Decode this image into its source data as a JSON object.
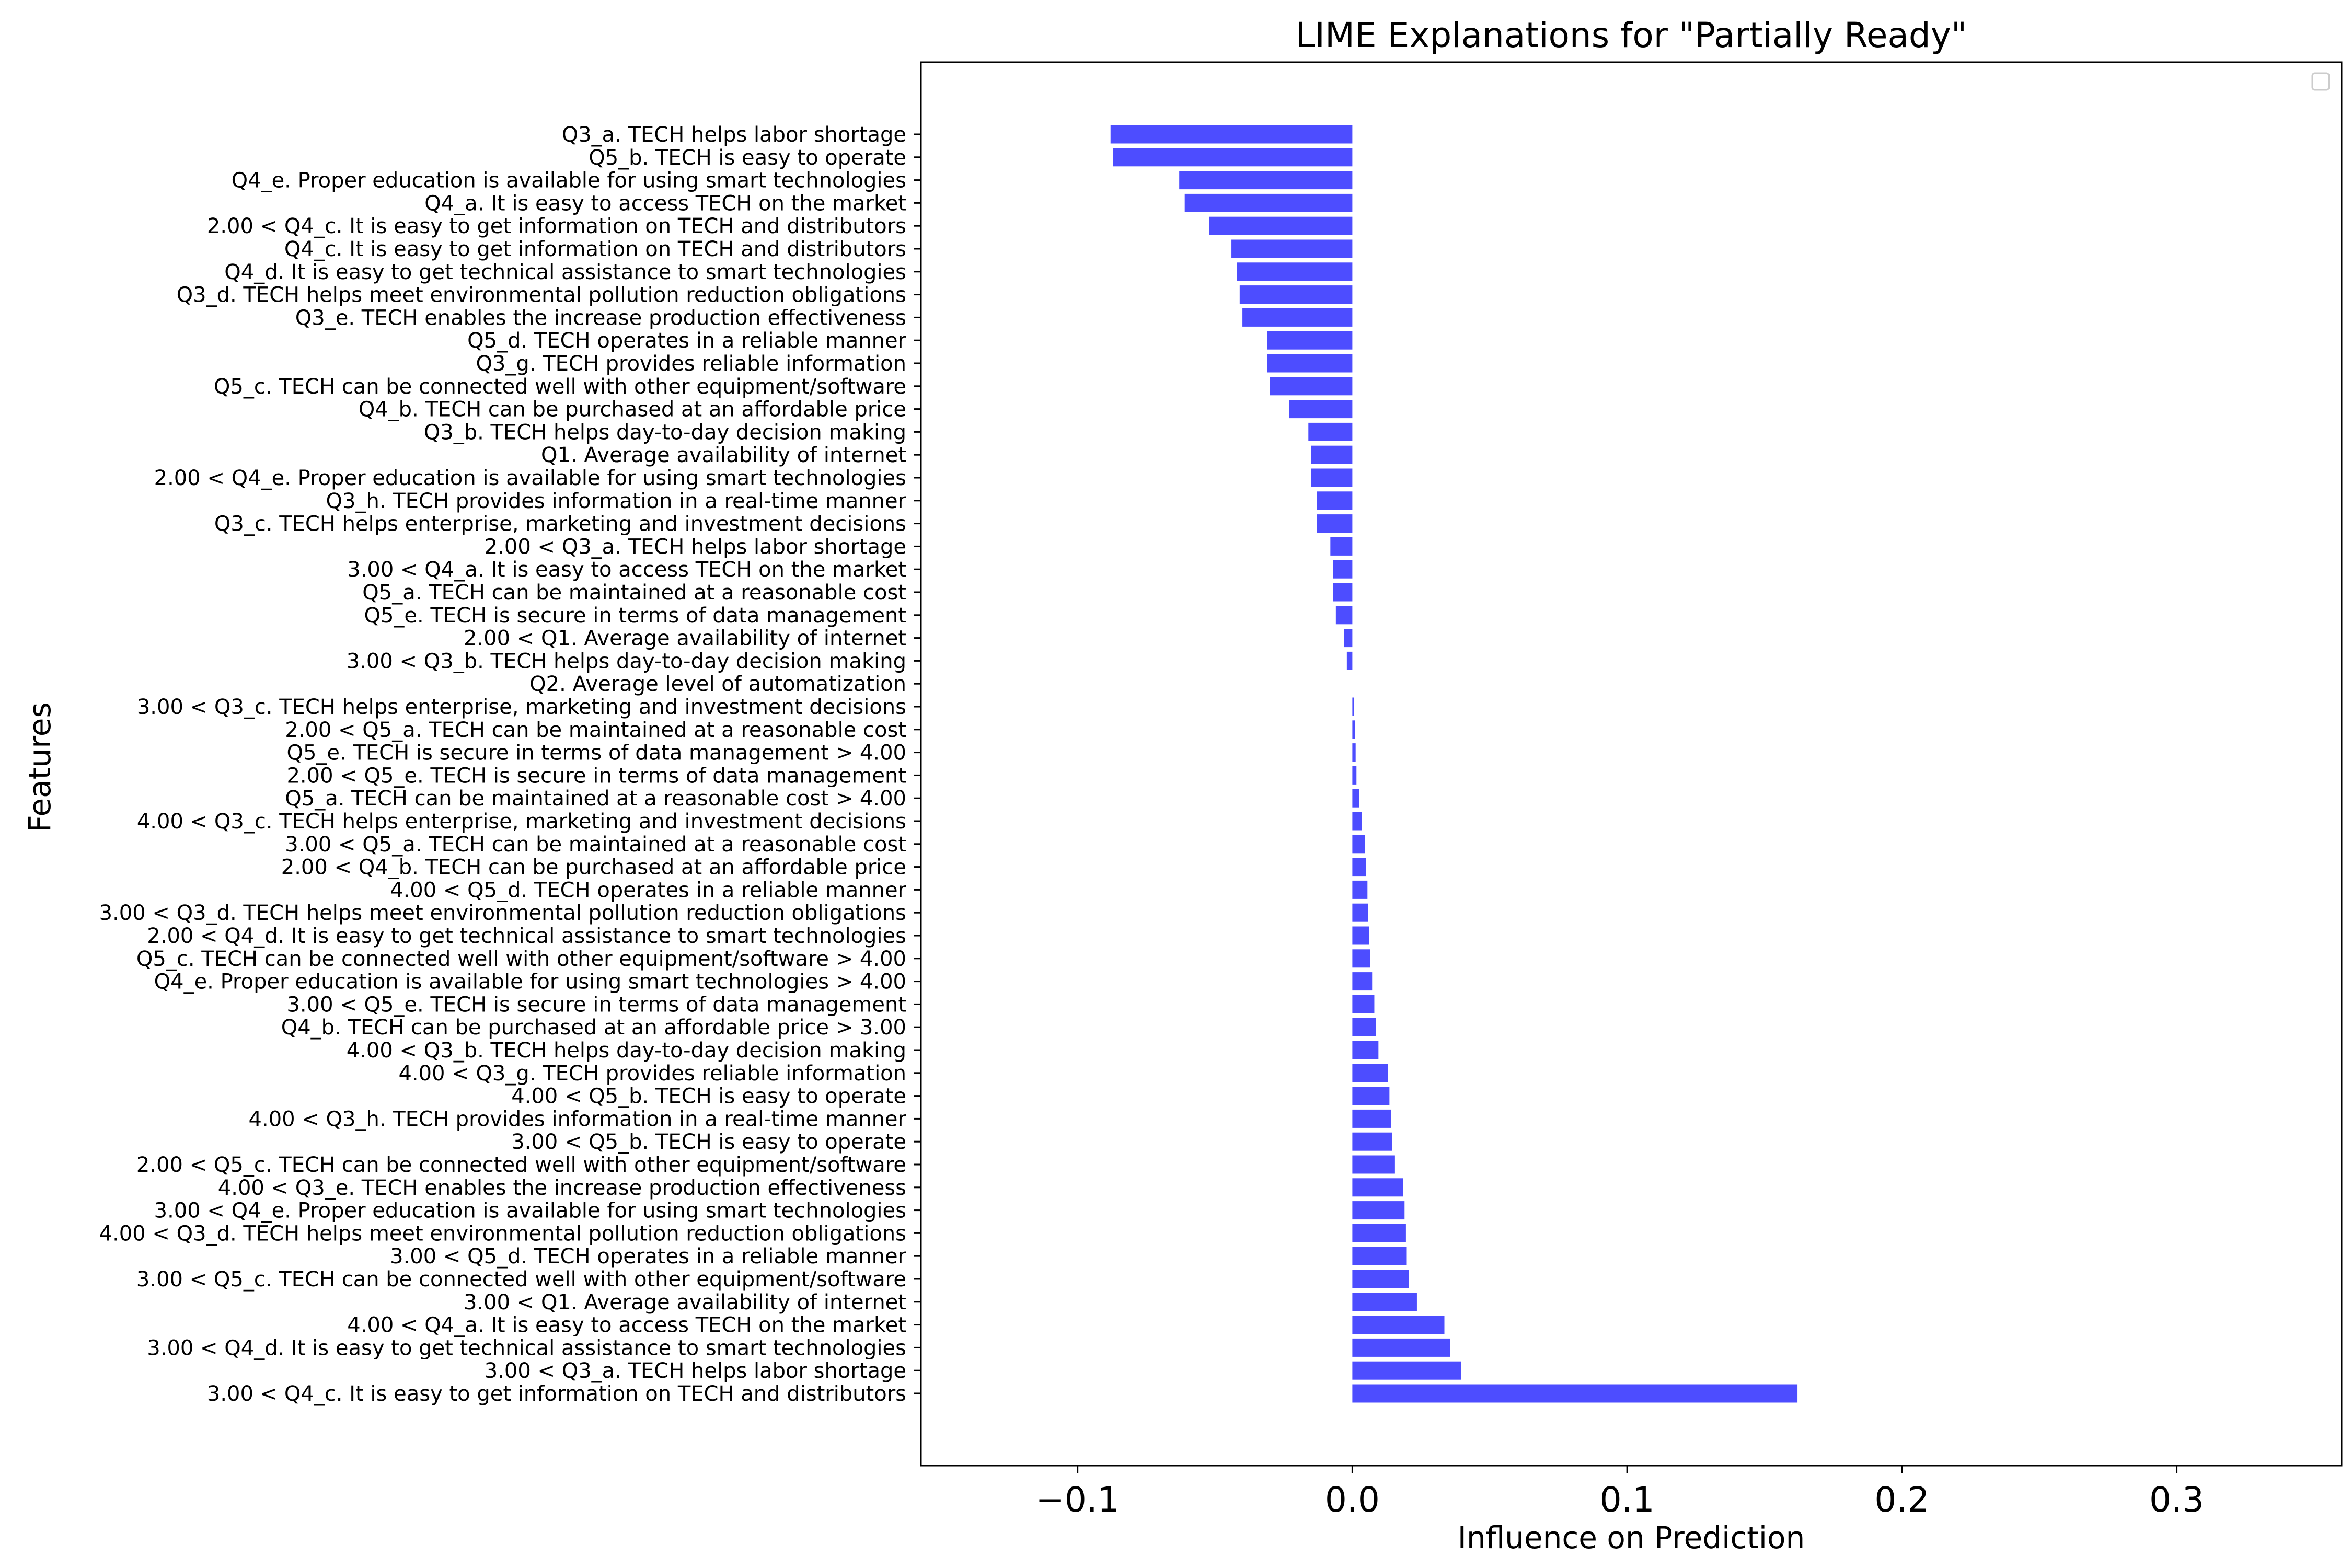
{
  "chart_data": {
    "type": "bar",
    "orientation": "horizontal",
    "title": "LIME Explanations for \"Partially Ready\"",
    "xlabel": "Influence on Prediction",
    "ylabel": "Features",
    "xlim": [
      -0.157,
      0.36
    ],
    "xticks": [
      -0.1,
      0.0,
      0.1,
      0.2,
      0.3
    ],
    "xtick_labels": [
      "−0.1",
      "0.0",
      "0.1",
      "0.2",
      "0.3"
    ],
    "bar_color": "#4d4dff",
    "grid": false,
    "legend": "top-right (empty)",
    "categories": [
      "Q3_a. TECH helps labor shortage",
      "Q5_b. TECH is easy to operate",
      "Q4_e. Proper education is available for using smart technologies",
      "Q4_a. It is easy to access TECH on the market",
      "2.00 < Q4_c. It is easy to get information on TECH and distributors",
      "Q4_c. It is easy to get information on TECH and distributors",
      "Q4_d. It is easy to get technical assistance to smart technologies",
      "Q3_d. TECH helps meet environmental pollution reduction obligations",
      "Q3_e. TECH enables the increase production effectiveness",
      "Q5_d. TECH operates in a reliable manner",
      "Q3_g. TECH provides reliable information",
      "Q5_c. TECH can be connected well with other equipment/software",
      "Q4_b. TECH can be purchased at an affordable price",
      "Q3_b. TECH helps day-to-day decision making",
      "Q1. Average availability of internet",
      "2.00 < Q4_e. Proper education is available for using smart technologies",
      "Q3_h. TECH provides information in a real-time manner",
      "Q3_c. TECH helps enterprise, marketing and investment decisions",
      "2.00 < Q3_a. TECH helps labor shortage",
      "3.00 < Q4_a. It is easy to access TECH on the market",
      "Q5_a. TECH can be maintained at a reasonable cost",
      "Q5_e. TECH is secure in terms of data management",
      "2.00 < Q1. Average availability of internet",
      "3.00 < Q3_b. TECH helps day-to-day decision making",
      "Q2. Average level of automatization",
      "3.00 < Q3_c. TECH helps enterprise, marketing and investment decisions",
      "2.00 < Q5_a. TECH can be maintained at a reasonable cost",
      "Q5_e. TECH is secure in terms of data management > 4.00",
      "2.00 < Q5_e. TECH is secure in terms of data management",
      "Q5_a. TECH can be maintained at a reasonable cost > 4.00",
      "4.00 < Q3_c. TECH helps enterprise, marketing and investment decisions",
      "3.00 < Q5_a. TECH can be maintained at a reasonable cost",
      "2.00 < Q4_b. TECH can be purchased at an affordable price",
      "4.00 < Q5_d. TECH operates in a reliable manner",
      "3.00 < Q3_d. TECH helps meet environmental pollution reduction obligations",
      "2.00 < Q4_d. It is easy to get technical assistance to smart technologies",
      "Q5_c. TECH can be connected well with other equipment/software > 4.00",
      "Q4_e. Proper education is available for using smart technologies > 4.00",
      "3.00 < Q5_e. TECH is secure in terms of data management",
      "Q4_b. TECH can be purchased at an affordable price > 3.00",
      "4.00 < Q3_b. TECH helps day-to-day decision making",
      "4.00 < Q3_g. TECH provides reliable information",
      "4.00 < Q5_b. TECH is easy to operate",
      "4.00 < Q3_h. TECH provides information in a real-time manner",
      "3.00 < Q5_b. TECH is easy to operate",
      "2.00 < Q5_c. TECH can be connected well with other equipment/software",
      "4.00 < Q3_e. TECH enables the increase production effectiveness",
      "3.00 < Q4_e. Proper education is available for using smart technologies",
      "4.00 < Q3_d. TECH helps meet environmental pollution reduction obligations",
      "3.00 < Q5_d. TECH operates in a reliable manner",
      "3.00 < Q5_c. TECH can be connected well with other equipment/software",
      "3.00 < Q1. Average availability of internet",
      "4.00 < Q4_a. It is easy to access TECH on the market",
      "3.00 < Q4_d. It is easy to get technical assistance to smart technologies",
      "3.00 < Q3_a. TECH helps labor shortage",
      "3.00 < Q4_c. It is easy to get information on TECH and distributors"
    ],
    "values": [
      -0.088,
      -0.087,
      -0.063,
      -0.061,
      -0.052,
      -0.044,
      -0.042,
      -0.041,
      -0.04,
      -0.031,
      -0.031,
      -0.03,
      -0.023,
      -0.016,
      -0.015,
      -0.015,
      -0.013,
      -0.013,
      -0.008,
      -0.007,
      -0.007,
      -0.006,
      -0.003,
      -0.002,
      0.0,
      0.0005,
      0.001,
      0.0012,
      0.0015,
      0.0025,
      0.0035,
      0.0045,
      0.005,
      0.0055,
      0.0058,
      0.0062,
      0.0065,
      0.0072,
      0.008,
      0.0085,
      0.0095,
      0.013,
      0.0135,
      0.014,
      0.0145,
      0.0155,
      0.0185,
      0.019,
      0.0195,
      0.0198,
      0.0205,
      0.0235,
      0.0335,
      0.0355,
      0.0395,
      0.162
    ]
  }
}
